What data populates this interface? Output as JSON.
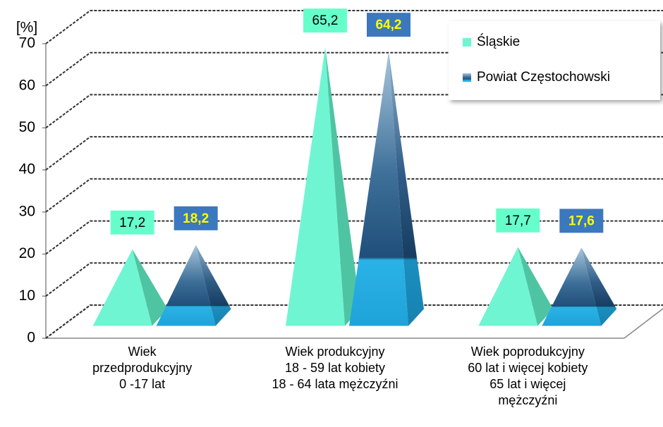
{
  "chart_data": {
    "type": "pyramid",
    "y_label": "[%]",
    "categories": [
      "Wiek\nprzedprodukcyjny\n0 -17 lat",
      "Wiek produkcyjny\n18 - 59 lat kobiety\n18 - 64 lata mężczyźni",
      "Wiek poprodukcyjny\n60 lat i więcej kobiety\n65 lat i więcej\nmężczyźni"
    ],
    "series": [
      {
        "name": "Śląskie",
        "color": "#70f5d2",
        "values": [
          17.2,
          65.2,
          17.7
        ],
        "value_labels": [
          "17,2",
          "65,2",
          "17,7"
        ]
      },
      {
        "name": "Powiat Częstochowski",
        "color": "#2f7fc0",
        "values": [
          18.2,
          64.2,
          17.6
        ],
        "value_labels": [
          "18,2",
          "64,2",
          "17,6"
        ]
      }
    ],
    "ylim": [
      0,
      70
    ],
    "yticks": [
      0,
      10,
      20,
      30,
      40,
      50,
      60,
      70
    ],
    "grid": true,
    "legend": "top-right"
  }
}
